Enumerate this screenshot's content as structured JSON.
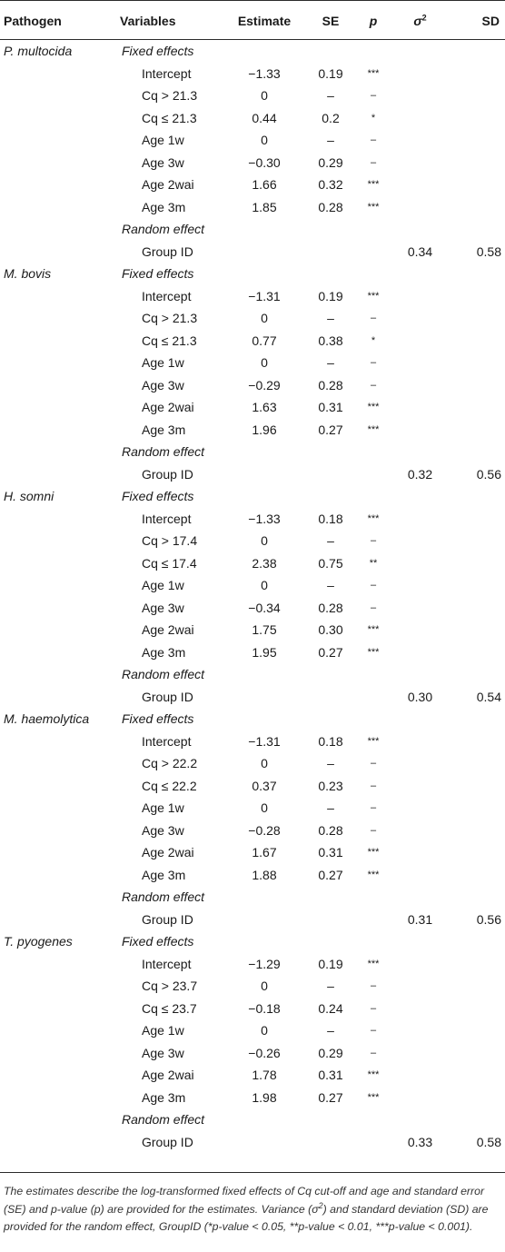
{
  "header": {
    "pathogen": "Pathogen",
    "variables": "Variables",
    "estimate": "Estimate",
    "se": "SE",
    "p": "p",
    "sigma_base": "σ",
    "sigma_sup": "2",
    "sd": "SD"
  },
  "groups": [
    {
      "pathogen": "P. multocida",
      "fixed_label": "Fixed effects",
      "rows": [
        {
          "var": "Intercept",
          "est": "−1.33",
          "se": "0.19",
          "p": "***"
        },
        {
          "var": "Cq > 21.3",
          "est": "0",
          "se": "–",
          "p": "–"
        },
        {
          "var": "Cq ≤ 21.3",
          "est": "0.44",
          "se": "0.2",
          "p": "*"
        },
        {
          "var": "Age 1w",
          "est": "0",
          "se": "–",
          "p": "–"
        },
        {
          "var": "Age 3w",
          "est": "−0.30",
          "se": "0.29",
          "p": "–"
        },
        {
          "var": "Age 2wai",
          "est": "1.66",
          "se": "0.32",
          "p": "***"
        },
        {
          "var": "Age 3m",
          "est": "1.85",
          "se": "0.28",
          "p": "***"
        }
      ],
      "random_label": "Random effect",
      "random": {
        "var": "Group ID",
        "sigma2": "0.34",
        "sd": "0.58"
      }
    },
    {
      "pathogen": "M. bovis",
      "fixed_label": "Fixed effects",
      "rows": [
        {
          "var": "Intercept",
          "est": "−1.31",
          "se": "0.19",
          "p": "***"
        },
        {
          "var": "Cq > 21.3",
          "est": "0",
          "se": "–",
          "p": "–"
        },
        {
          "var": "Cq ≤ 21.3",
          "est": "0.77",
          "se": "0.38",
          "p": "*"
        },
        {
          "var": "Age 1w",
          "est": "0",
          "se": "–",
          "p": "–"
        },
        {
          "var": "Age 3w",
          "est": "−0.29",
          "se": "0.28",
          "p": "–"
        },
        {
          "var": "Age 2wai",
          "est": "1.63",
          "se": "0.31",
          "p": "***"
        },
        {
          "var": "Age 3m",
          "est": "1.96",
          "se": "0.27",
          "p": "***"
        }
      ],
      "random_label": "Random effect",
      "random": {
        "var": "Group ID",
        "sigma2": "0.32",
        "sd": "0.56"
      }
    },
    {
      "pathogen": "H. somni",
      "fixed_label": "Fixed effects",
      "rows": [
        {
          "var": "Intercept",
          "est": "−1.33",
          "se": "0.18",
          "p": "***"
        },
        {
          "var": "Cq > 17.4",
          "est": "0",
          "se": "–",
          "p": "–"
        },
        {
          "var": "Cq ≤ 17.4",
          "est": "2.38",
          "se": "0.75",
          "p": "**"
        },
        {
          "var": "Age 1w",
          "est": "0",
          "se": "–",
          "p": "–"
        },
        {
          "var": "Age 3w",
          "est": "−0.34",
          "se": "0.28",
          "p": "–"
        },
        {
          "var": "Age 2wai",
          "est": "1.75",
          "se": "0.30",
          "p": "***"
        },
        {
          "var": "Age 3m",
          "est": "1.95",
          "se": "0.27",
          "p": "***"
        }
      ],
      "random_label": "Random effect",
      "random": {
        "var": "Group ID",
        "sigma2": "0.30",
        "sd": "0.54"
      }
    },
    {
      "pathogen": "M. haemolytica",
      "fixed_label": "Fixed effects",
      "rows": [
        {
          "var": "Intercept",
          "est": "−1.31",
          "se": "0.18",
          "p": "***"
        },
        {
          "var": "Cq > 22.2",
          "est": "0",
          "se": "–",
          "p": "–"
        },
        {
          "var": "Cq ≤ 22.2",
          "est": "0.37",
          "se": "0.23",
          "p": "–"
        },
        {
          "var": "Age 1w",
          "est": "0",
          "se": "–",
          "p": "–"
        },
        {
          "var": "Age 3w",
          "est": "−0.28",
          "se": "0.28",
          "p": "–"
        },
        {
          "var": "Age 2wai",
          "est": "1.67",
          "se": "0.31",
          "p": "***"
        },
        {
          "var": "Age 3m",
          "est": "1.88",
          "se": "0.27",
          "p": "***"
        }
      ],
      "random_label": "Random effect",
      "random": {
        "var": "Group ID",
        "sigma2": "0.31",
        "sd": "0.56"
      }
    },
    {
      "pathogen": "T. pyogenes",
      "fixed_label": "Fixed effects",
      "rows": [
        {
          "var": "Intercept",
          "est": "−1.29",
          "se": "0.19",
          "p": "***"
        },
        {
          "var": "Cq > 23.7",
          "est": "0",
          "se": "–",
          "p": "–"
        },
        {
          "var": "Cq ≤ 23.7",
          "est": "−0.18",
          "se": "0.24",
          "p": "–"
        },
        {
          "var": "Age 1w",
          "est": "0",
          "se": "–",
          "p": "–"
        },
        {
          "var": "Age 3w",
          "est": "−0.26",
          "se": "0.29",
          "p": "–"
        },
        {
          "var": "Age 2wai",
          "est": "1.78",
          "se": "0.31",
          "p": "***"
        },
        {
          "var": "Age 3m",
          "est": "1.98",
          "se": "0.27",
          "p": "***"
        }
      ],
      "random_label": "Random effect",
      "random": {
        "var": "Group ID",
        "sigma2": "0.33",
        "sd": "0.58"
      }
    }
  ],
  "footnote": {
    "part1": "The estimates describe the log-transformed fixed effects of Cq cut-off and age and standard error (SE) and p-value (p) are provided for the estimates. Variance (σ",
    "sup1": "2",
    "part2": ") and standard deviation (SD) are provided for the random effect, GroupID (*p-value < 0.05, **p-value < 0.01, ***p-value < 0.001)."
  }
}
